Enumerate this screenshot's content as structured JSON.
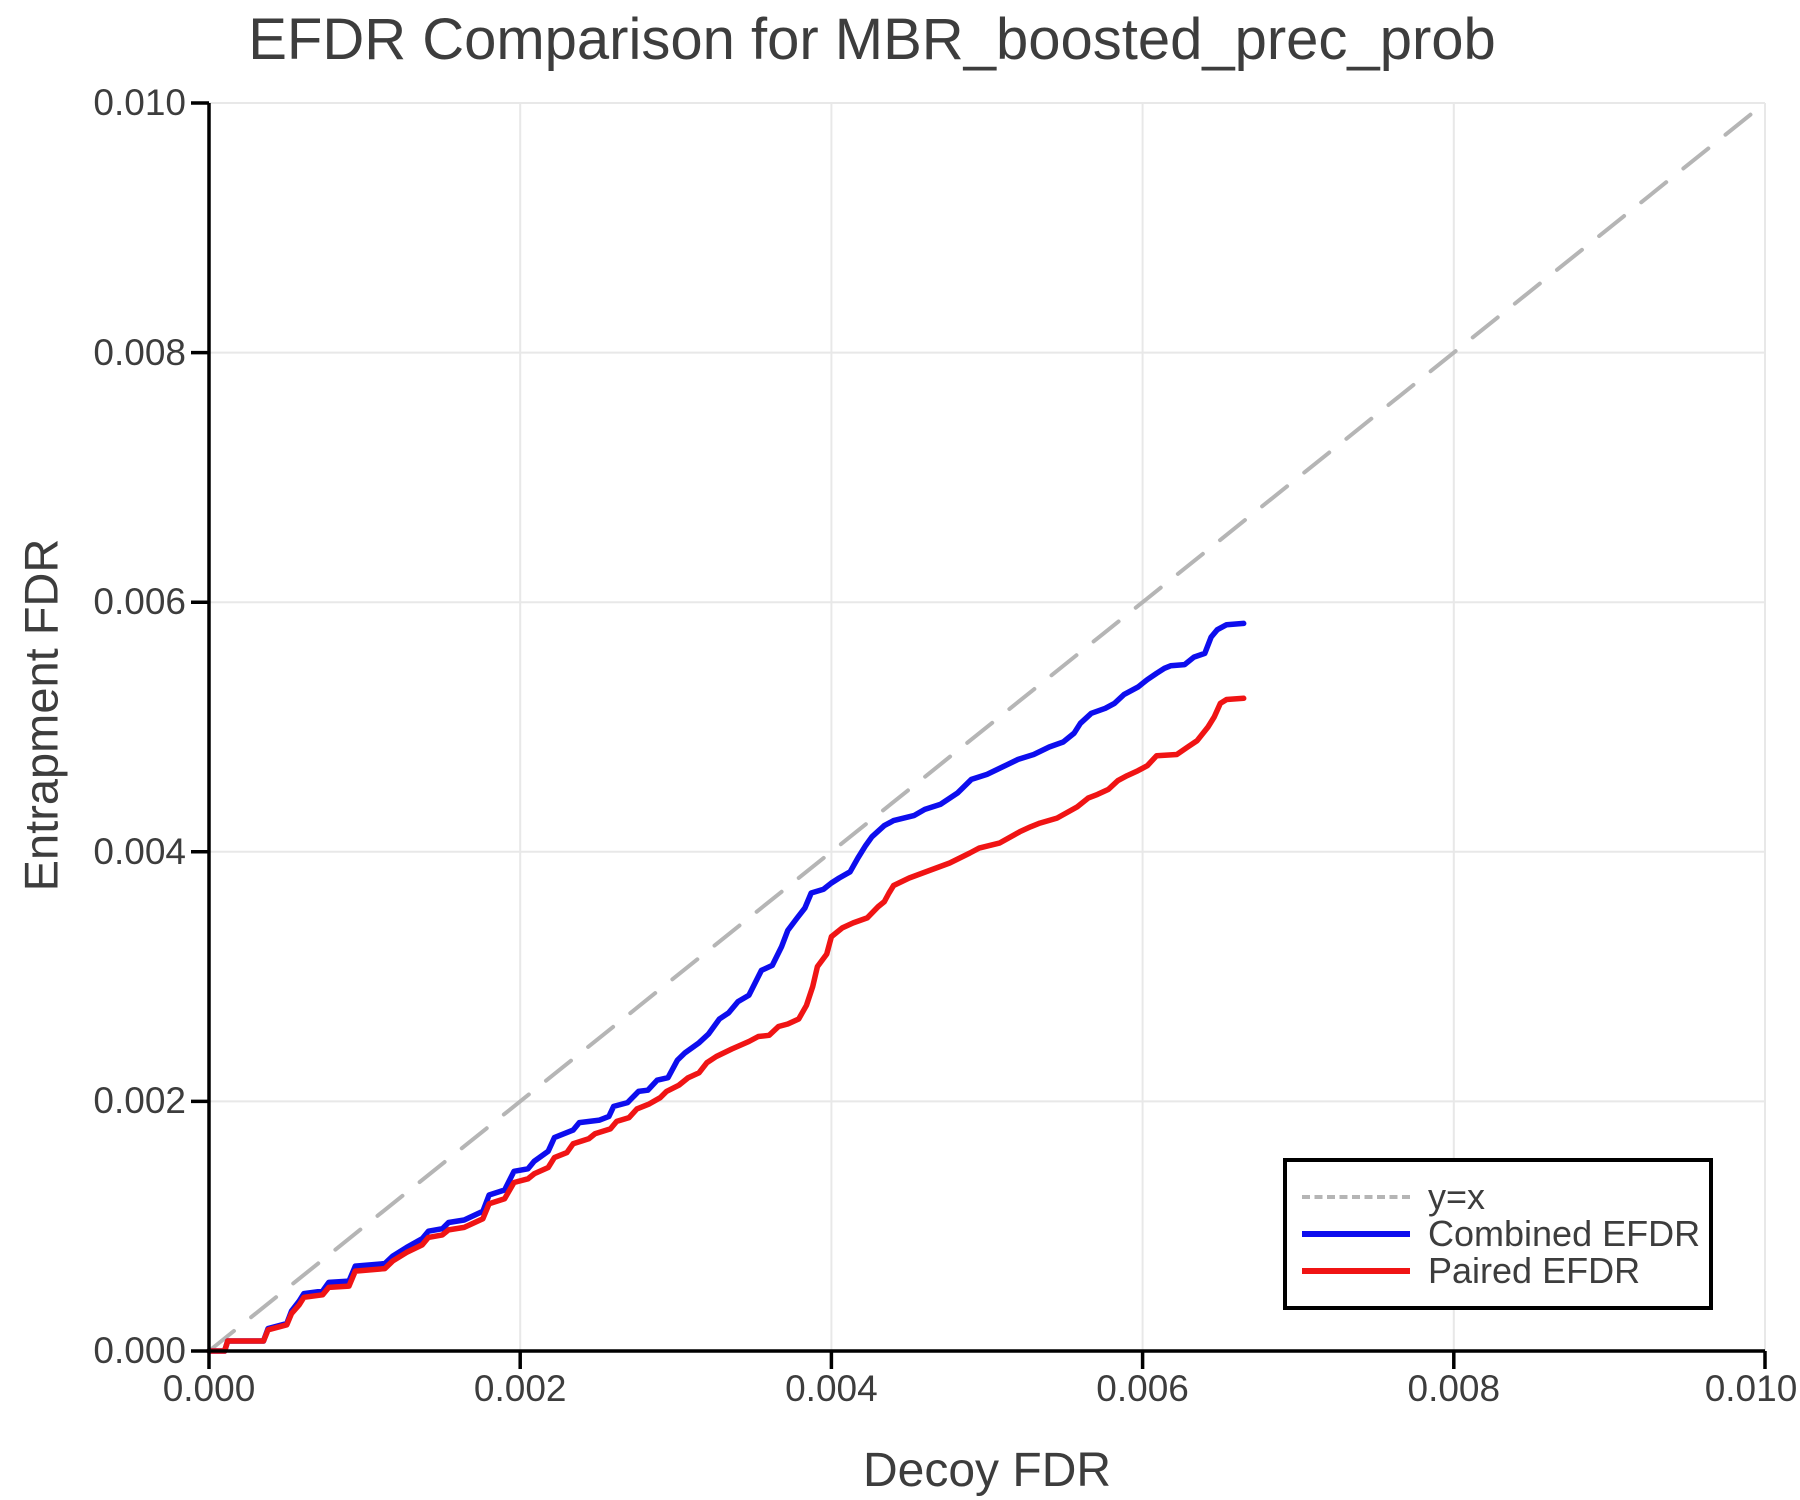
{
  "title": "EFDR Comparison for MBR_boosted_prec_prob",
  "axes": {
    "xlabel": "Decoy FDR",
    "ylabel": "Entrapment FDR",
    "x_tick_values": [
      0,
      0.002,
      0.004,
      0.006,
      0.008,
      0.01
    ],
    "x_tick_labels": [
      "0.000",
      "0.002",
      "0.004",
      "0.006",
      "0.008",
      "0.010"
    ],
    "y_tick_values": [
      0,
      0.002,
      0.004,
      0.006,
      0.008,
      0.01
    ],
    "y_tick_labels": [
      "0.000",
      "0.002",
      "0.004",
      "0.006",
      "0.008",
      "0.010"
    ]
  },
  "legend": {
    "items": [
      {
        "label": "y=x",
        "color": "#b5b5b5",
        "style": "dashed"
      },
      {
        "label": "Combined EFDR",
        "color": "#0d0dee",
        "style": "solid"
      },
      {
        "label": "Paired EFDR",
        "color": "#f01414",
        "style": "solid"
      }
    ]
  },
  "colors": {
    "grid": "#e8e8e8",
    "axis": "#000000",
    "text": "#3d3d3d",
    "identity_line": "#b5b5b5",
    "combined_line": "#0d0dee",
    "paired_line": "#f01414"
  },
  "chart_data": {
    "type": "line",
    "title": "EFDR Comparison for MBR_boosted_prec_prob",
    "xlabel": "Decoy FDR",
    "ylabel": "Entrapment FDR",
    "xlim": [
      0,
      0.01
    ],
    "ylim": [
      0,
      0.01
    ],
    "grid": true,
    "legend_position": "lower right",
    "series": [
      {
        "name": "y=x",
        "style": "dashed",
        "color": "#b5b5b5",
        "points": [
          [
            0,
            0
          ],
          [
            0.01,
            0.01
          ]
        ]
      },
      {
        "name": "Combined EFDR",
        "style": "solid",
        "color": "#0d0dee",
        "points": [
          [
            0.0,
            0.0
          ],
          [
            0.0001,
            0.0
          ],
          [
            0.00012,
            8e-05
          ],
          [
            0.00035,
            8e-05
          ],
          [
            0.00038,
            0.00018
          ],
          [
            0.0005,
            0.00022
          ],
          [
            0.00053,
            0.00032
          ],
          [
            0.00058,
            0.0004
          ],
          [
            0.00061,
            0.00046
          ],
          [
            0.00073,
            0.00048
          ],
          [
            0.00077,
            0.00055
          ],
          [
            0.0009,
            0.00056
          ],
          [
            0.00094,
            0.00068
          ],
          [
            0.00113,
            0.0007
          ],
          [
            0.00118,
            0.00076
          ],
          [
            0.00127,
            0.00083
          ],
          [
            0.00137,
            0.0009
          ],
          [
            0.00141,
            0.00096
          ],
          [
            0.0015,
            0.00098
          ],
          [
            0.00154,
            0.00103
          ],
          [
            0.00164,
            0.00105
          ],
          [
            0.00176,
            0.00112
          ],
          [
            0.0018,
            0.00125
          ],
          [
            0.0019,
            0.00129
          ],
          [
            0.00196,
            0.00144
          ],
          [
            0.00205,
            0.00146
          ],
          [
            0.00209,
            0.00152
          ],
          [
            0.00218,
            0.0016
          ],
          [
            0.00222,
            0.00171
          ],
          [
            0.00234,
            0.00177
          ],
          [
            0.00238,
            0.00183
          ],
          [
            0.00251,
            0.00185
          ],
          [
            0.00257,
            0.00188
          ],
          [
            0.0026,
            0.00196
          ],
          [
            0.00269,
            0.00199
          ],
          [
            0.00276,
            0.00208
          ],
          [
            0.00282,
            0.00209
          ],
          [
            0.00288,
            0.00217
          ],
          [
            0.00295,
            0.00219
          ],
          [
            0.00301,
            0.00233
          ],
          [
            0.00306,
            0.00239
          ],
          [
            0.00315,
            0.00247
          ],
          [
            0.00321,
            0.00254
          ],
          [
            0.00328,
            0.00266
          ],
          [
            0.00334,
            0.00271
          ],
          [
            0.0034,
            0.0028
          ],
          [
            0.00347,
            0.00285
          ],
          [
            0.00351,
            0.00295
          ],
          [
            0.00355,
            0.00305
          ],
          [
            0.00362,
            0.00309
          ],
          [
            0.00368,
            0.00324
          ],
          [
            0.00372,
            0.00337
          ],
          [
            0.00378,
            0.00347
          ],
          [
            0.00383,
            0.00355
          ],
          [
            0.00387,
            0.00367
          ],
          [
            0.00395,
            0.0037
          ],
          [
            0.004,
            0.00375
          ],
          [
            0.00405,
            0.00379
          ],
          [
            0.00412,
            0.00384
          ],
          [
            0.00417,
            0.00395
          ],
          [
            0.00422,
            0.00405
          ],
          [
            0.00426,
            0.00412
          ],
          [
            0.00434,
            0.00421
          ],
          [
            0.0044,
            0.00425
          ],
          [
            0.00453,
            0.00429
          ],
          [
            0.0046,
            0.00434
          ],
          [
            0.0047,
            0.00438
          ],
          [
            0.00481,
            0.00447
          ],
          [
            0.0049,
            0.00458
          ],
          [
            0.005,
            0.00462
          ],
          [
            0.0051,
            0.00468
          ],
          [
            0.0052,
            0.00474
          ],
          [
            0.0053,
            0.00478
          ],
          [
            0.0054,
            0.00484
          ],
          [
            0.00549,
            0.00488
          ],
          [
            0.00556,
            0.00495
          ],
          [
            0.0056,
            0.00503
          ],
          [
            0.00567,
            0.00511
          ],
          [
            0.00576,
            0.00515
          ],
          [
            0.00582,
            0.00519
          ],
          [
            0.00588,
            0.00526
          ],
          [
            0.00597,
            0.00532
          ],
          [
            0.00603,
            0.00538
          ],
          [
            0.00609,
            0.00543
          ],
          [
            0.00614,
            0.00547
          ],
          [
            0.00618,
            0.00549
          ],
          [
            0.00627,
            0.0055
          ],
          [
            0.00633,
            0.00556
          ],
          [
            0.0064,
            0.00559
          ],
          [
            0.00644,
            0.00572
          ],
          [
            0.00648,
            0.00578
          ],
          [
            0.00654,
            0.00582
          ],
          [
            0.00665,
            0.00583
          ]
        ]
      },
      {
        "name": "Paired EFDR",
        "style": "solid",
        "color": "#f01414",
        "points": [
          [
            0.0,
            0.0
          ],
          [
            0.0001,
            0.0
          ],
          [
            0.00012,
            8e-05
          ],
          [
            0.00035,
            8e-05
          ],
          [
            0.00038,
            0.00017
          ],
          [
            0.0005,
            0.00021
          ],
          [
            0.00053,
            0.0003
          ],
          [
            0.00058,
            0.00037
          ],
          [
            0.00061,
            0.00043
          ],
          [
            0.00073,
            0.00045
          ],
          [
            0.00077,
            0.00051
          ],
          [
            0.0009,
            0.00052
          ],
          [
            0.00094,
            0.00064
          ],
          [
            0.00113,
            0.00066
          ],
          [
            0.00118,
            0.00072
          ],
          [
            0.00127,
            0.00079
          ],
          [
            0.00137,
            0.00085
          ],
          [
            0.00141,
            0.00091
          ],
          [
            0.0015,
            0.00093
          ],
          [
            0.00154,
            0.00097
          ],
          [
            0.00164,
            0.00099
          ],
          [
            0.00176,
            0.00106
          ],
          [
            0.0018,
            0.00118
          ],
          [
            0.0019,
            0.00122
          ],
          [
            0.00196,
            0.00135
          ],
          [
            0.00205,
            0.00138
          ],
          [
            0.00209,
            0.00142
          ],
          [
            0.00218,
            0.00147
          ],
          [
            0.00222,
            0.00155
          ],
          [
            0.0023,
            0.00159
          ],
          [
            0.00234,
            0.00166
          ],
          [
            0.00244,
            0.0017
          ],
          [
            0.00248,
            0.00174
          ],
          [
            0.00258,
            0.00178
          ],
          [
            0.00262,
            0.00184
          ],
          [
            0.0027,
            0.00187
          ],
          [
            0.00275,
            0.00194
          ],
          [
            0.00283,
            0.00198
          ],
          [
            0.0029,
            0.00203
          ],
          [
            0.00294,
            0.00208
          ],
          [
            0.00302,
            0.00213
          ],
          [
            0.00308,
            0.00219
          ],
          [
            0.00315,
            0.00223
          ],
          [
            0.0032,
            0.00231
          ],
          [
            0.00326,
            0.00236
          ],
          [
            0.00336,
            0.00242
          ],
          [
            0.00347,
            0.00248
          ],
          [
            0.00353,
            0.00252
          ],
          [
            0.0036,
            0.00253
          ],
          [
            0.00366,
            0.0026
          ],
          [
            0.00372,
            0.00262
          ],
          [
            0.00379,
            0.00266
          ],
          [
            0.00384,
            0.00277
          ],
          [
            0.00388,
            0.00292
          ],
          [
            0.00391,
            0.00308
          ],
          [
            0.00397,
            0.00318
          ],
          [
            0.004,
            0.00332
          ],
          [
            0.00407,
            0.00339
          ],
          [
            0.00414,
            0.00343
          ],
          [
            0.00423,
            0.00347
          ],
          [
            0.0043,
            0.00356
          ],
          [
            0.00434,
            0.0036
          ],
          [
            0.00437,
            0.00367
          ],
          [
            0.0044,
            0.00373
          ],
          [
            0.0045,
            0.00379
          ],
          [
            0.00463,
            0.00385
          ],
          [
            0.00476,
            0.00391
          ],
          [
            0.00489,
            0.00399
          ],
          [
            0.00495,
            0.00403
          ],
          [
            0.00508,
            0.00407
          ],
          [
            0.00521,
            0.00416
          ],
          [
            0.00528,
            0.0042
          ],
          [
            0.00534,
            0.00423
          ],
          [
            0.00545,
            0.00427
          ],
          [
            0.00558,
            0.00436
          ],
          [
            0.00565,
            0.00443
          ],
          [
            0.00571,
            0.00446
          ],
          [
            0.00578,
            0.0045
          ],
          [
            0.00584,
            0.00457
          ],
          [
            0.0059,
            0.00461
          ],
          [
            0.00597,
            0.00465
          ],
          [
            0.00603,
            0.00469
          ],
          [
            0.00609,
            0.00477
          ],
          [
            0.00622,
            0.00478
          ],
          [
            0.00629,
            0.00484
          ],
          [
            0.00635,
            0.00489
          ],
          [
            0.00642,
            0.005
          ],
          [
            0.00646,
            0.00508
          ],
          [
            0.0065,
            0.00519
          ],
          [
            0.00654,
            0.00522
          ],
          [
            0.00665,
            0.00523
          ]
        ]
      }
    ]
  }
}
